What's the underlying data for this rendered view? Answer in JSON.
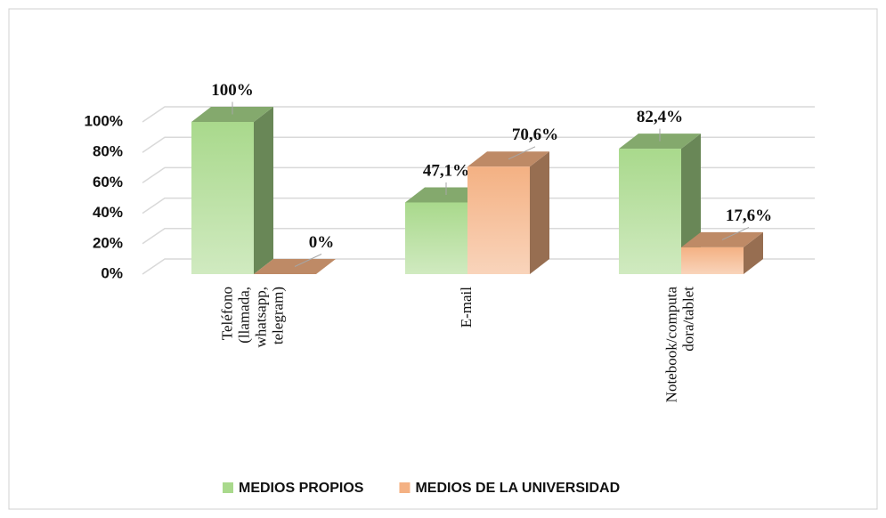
{
  "chart_data": {
    "type": "bar3d",
    "categories": [
      "Teléfono (llamada, whatsapp, telegram)",
      "E-mail",
      "Notebook/computadora/tablet"
    ],
    "series": [
      {
        "name": "MEDIOS PROPIOS",
        "color": "#a9d98c",
        "values": [
          100,
          47.1,
          82.4
        ],
        "value_labels": [
          "100%",
          "47,1%",
          "82,4%"
        ]
      },
      {
        "name": "MEDIOS DE LA UNIVERSIDAD",
        "color": "#f4b183",
        "values": [
          0,
          70.6,
          17.6
        ],
        "value_labels": [
          "0%",
          "70,6%",
          "17,6%"
        ]
      }
    ],
    "ylim": [
      0,
      100
    ],
    "yticks": [
      {
        "value": 0,
        "label": "0%"
      },
      {
        "value": 20,
        "label": "20%"
      },
      {
        "value": 40,
        "label": "40%"
      },
      {
        "value": 60,
        "label": "60%"
      },
      {
        "value": 80,
        "label": "80%"
      },
      {
        "value": 100,
        "label": "100%"
      }
    ],
    "grid": true,
    "legend": "bottom"
  }
}
